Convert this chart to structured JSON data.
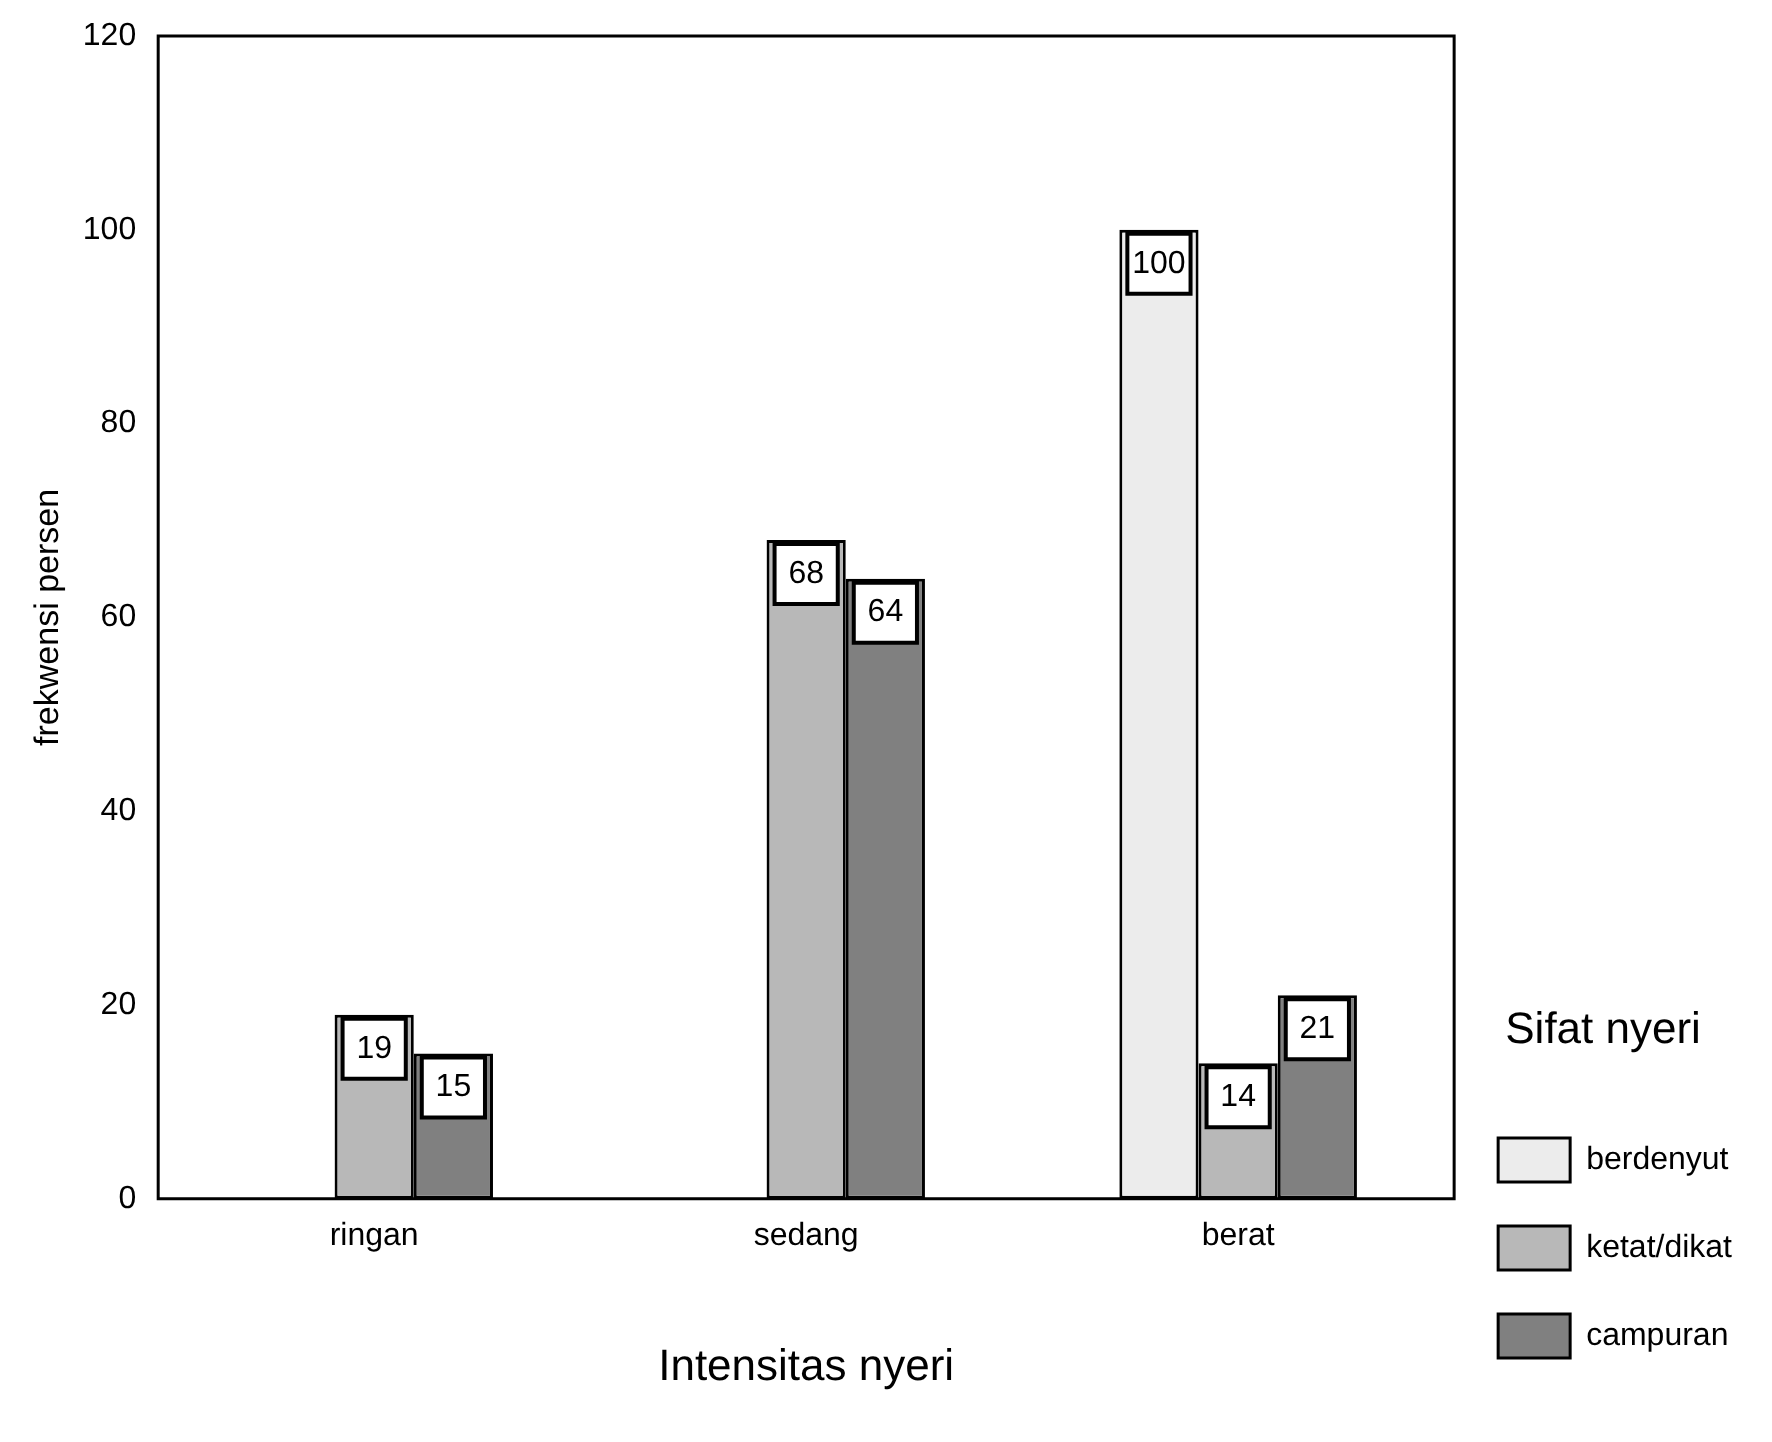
{
  "chart_data": {
    "type": "bar",
    "xlabel": "Intensitas nyeri",
    "ylabel": "frekwensi persen",
    "legend_title": "Sifat nyeri",
    "categories": [
      "ringan",
      "sedang",
      "berat"
    ],
    "series": [
      {
        "name": "berdenyut",
        "color": "#ececec",
        "values": [
          null,
          null,
          100
        ]
      },
      {
        "name": "ketat/dikat",
        "color": "#b8b8b8",
        "values": [
          19,
          68,
          14
        ]
      },
      {
        "name": "campuran",
        "color": "#808080",
        "values": [
          15,
          64,
          21
        ]
      }
    ],
    "ylim": [
      0,
      120
    ],
    "yticks": [
      0,
      20,
      40,
      60,
      80,
      100,
      120
    ],
    "grid": false,
    "legend": "right",
    "data_labels": true
  }
}
